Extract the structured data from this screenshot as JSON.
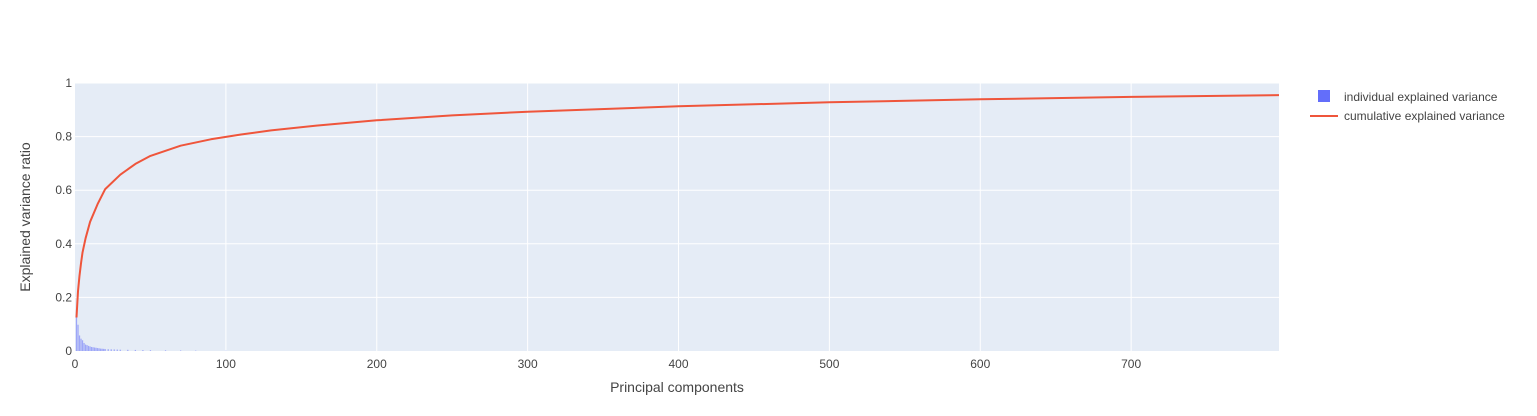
{
  "chart_data": {
    "type": "bar+line",
    "xlabel": "Principal components",
    "ylabel": "Explained variance ratio",
    "xlim": [
      0,
      798
    ],
    "ylim": [
      0,
      1
    ],
    "x_ticks": [
      0,
      100,
      200,
      300,
      400,
      500,
      600,
      700
    ],
    "y_ticks": [
      0,
      0.2,
      0.4,
      0.6,
      0.8,
      1
    ],
    "y_tick_labels": [
      "0",
      "0.2",
      "0.4",
      "0.6",
      "0.8",
      "1"
    ],
    "grid": true,
    "legend_position": "top-right",
    "series": [
      {
        "name": "individual explained variance",
        "type": "bar",
        "color": "#636efa",
        "x": [
          1,
          2,
          3,
          4,
          5,
          6,
          7,
          8,
          9,
          10,
          11,
          12,
          13,
          14,
          15,
          16,
          17,
          18,
          19,
          20,
          22,
          24,
          26,
          28,
          30,
          35,
          40,
          45,
          50,
          60,
          70,
          80,
          100
        ],
        "values": [
          0.125,
          0.098,
          0.058,
          0.046,
          0.04,
          0.03,
          0.024,
          0.022,
          0.019,
          0.017,
          0.015,
          0.014,
          0.013,
          0.012,
          0.011,
          0.01,
          0.009,
          0.0085,
          0.008,
          0.0075,
          0.007,
          0.0065,
          0.006,
          0.0055,
          0.005,
          0.0045,
          0.004,
          0.0035,
          0.003,
          0.0025,
          0.002,
          0.0015,
          0.001
        ]
      },
      {
        "name": "cumulative explained variance",
        "type": "line",
        "color": "#ef553b",
        "x": [
          1,
          2,
          3,
          4,
          5,
          7,
          10,
          15,
          20,
          30,
          40,
          50,
          70,
          90,
          110,
          130,
          160,
          200,
          250,
          300,
          400,
          500,
          600,
          700,
          798
        ],
        "values": [
          0.125,
          0.223,
          0.281,
          0.327,
          0.367,
          0.421,
          0.482,
          0.548,
          0.604,
          0.658,
          0.698,
          0.728,
          0.766,
          0.79,
          0.808,
          0.823,
          0.841,
          0.861,
          0.879,
          0.893,
          0.913,
          0.928,
          0.939,
          0.948,
          0.955
        ]
      }
    ]
  }
}
